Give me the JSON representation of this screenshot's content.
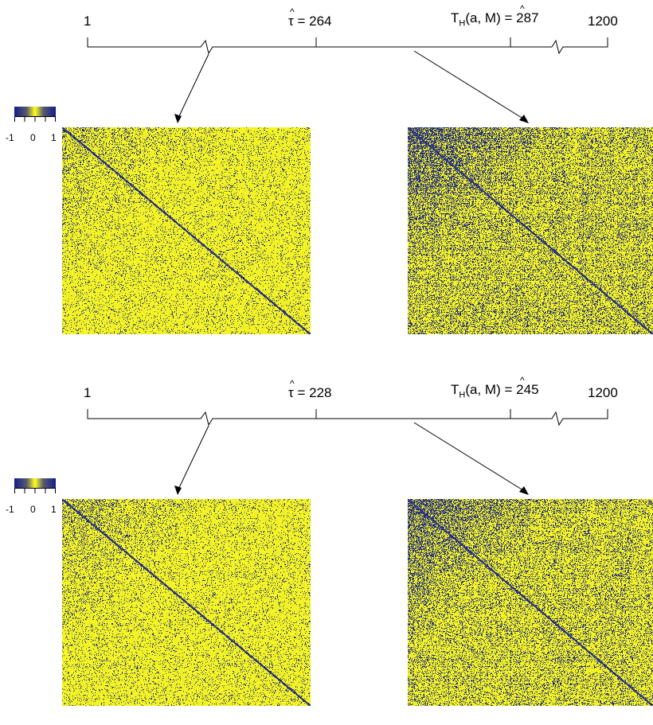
{
  "colors": {
    "yellow": "#ffff1f",
    "navy": "#121c8a",
    "white": "#ffffff"
  },
  "panels": [
    {
      "start_label": "1",
      "tau_value": "264",
      "th_value": "287",
      "end_label": "1200",
      "colorbar_ticks": [
        "-1",
        "0",
        "1"
      ],
      "heatmaps": [
        {
          "density": 0.15,
          "block_density": 0.25
        },
        {
          "density": 0.38,
          "block_density": 0.55
        }
      ]
    },
    {
      "start_label": "1",
      "tau_value": "228",
      "th_value": "245",
      "end_label": "1200",
      "colorbar_ticks": [
        "-1",
        "0",
        "1"
      ],
      "heatmaps": [
        {
          "density": 0.16,
          "block_density": 0.3
        },
        {
          "density": 0.34,
          "block_density": 0.55
        }
      ]
    }
  ],
  "tau_symbol": "τ",
  "hat_symbol": "^",
  "th_prefix": "T",
  "th_sub": "H",
  "th_args_a": "(a, ",
  "th_args_m": "M",
  "th_args_close": ")",
  "equals": "="
}
